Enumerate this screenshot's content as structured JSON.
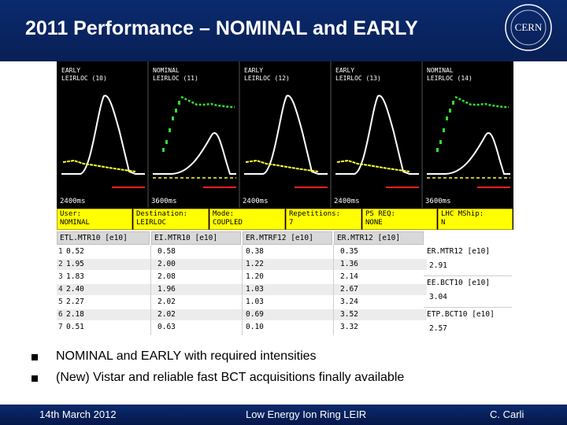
{
  "slide": {
    "title": "2011 Performance – NOMINAL and EARLY",
    "logo_text": "CERN"
  },
  "panels": [
    {
      "line1": "EARLY",
      "line2": "LEIRLOC (10)",
      "time": "2400ms"
    },
    {
      "line1": "NOMINAL",
      "line2": "LEIRLOC (11)",
      "time": "3600ms"
    },
    {
      "line1": "EARLY",
      "line2": "LEIRLOC (12)",
      "time": "2400ms"
    },
    {
      "line1": "EARLY",
      "line2": "LEIRLOC (13)",
      "time": "2400ms"
    },
    {
      "line1": "NOMINAL",
      "line2": "LEIRLOC (14)",
      "time": "3600ms"
    }
  ],
  "info_bar": [
    {
      "label": "User:",
      "value": "NOMINAL"
    },
    {
      "label": "Destination:",
      "value": "LEIRLOC"
    },
    {
      "label": "Mode:",
      "value": "COUPLED"
    },
    {
      "label": "Repetitions:",
      "value": "7"
    },
    {
      "label": "PS REQ:",
      "value": "NONE"
    },
    {
      "label": "LHC MShip:",
      "value": "N"
    }
  ],
  "table": {
    "headers": [
      "ETL.MTR10 [e10]",
      "EI.MTR10 [e10]",
      "ER.MTRF12 [e10]",
      "ER.MTR12 [e10]"
    ],
    "rows": [
      {
        "idx": "1",
        "values": [
          "0.52",
          "0.58",
          "0.38",
          "0.35"
        ]
      },
      {
        "idx": "2",
        "values": [
          "1.95",
          "2.00",
          "1.22",
          "1.36"
        ]
      },
      {
        "idx": "3",
        "values": [
          "1.83",
          "2.08",
          "1.20",
          "2.14"
        ]
      },
      {
        "idx": "4",
        "values": [
          "2.40",
          "1.96",
          "1.03",
          "2.67"
        ]
      },
      {
        "idx": "5",
        "values": [
          "2.27",
          "2.02",
          "1.03",
          "3.24"
        ]
      },
      {
        "idx": "6",
        "values": [
          "2.18",
          "2.02",
          "0.69",
          "3.52"
        ]
      },
      {
        "idx": "7",
        "values": [
          "0.51",
          "0.63",
          "0.10",
          "3.32"
        ]
      }
    ]
  },
  "side_values": [
    {
      "label": "ER.MTR12 [e10]",
      "value": "2.91"
    },
    {
      "label": "EE.BCT10 [e10]",
      "value": "3.04"
    },
    {
      "label": "ETP.BCT10 [e10]",
      "value": "2.57"
    }
  ],
  "bullets": [
    "NOMINAL and EARLY with required intensities",
    "(New) Vistar and reliable fast BCT acquisitions finally available"
  ],
  "footer": {
    "date": "14th March 2012",
    "center": "Low Energy Ion Ring LEIR",
    "author": "C. Carli"
  },
  "colors": {
    "header_blue": "#0a2a6e",
    "trace_white": "#ffffff",
    "trace_green": "#33dd33",
    "trace_yellow": "#ffff33",
    "trace_red": "#ff2020",
    "info_yellow": "#ffff00"
  }
}
